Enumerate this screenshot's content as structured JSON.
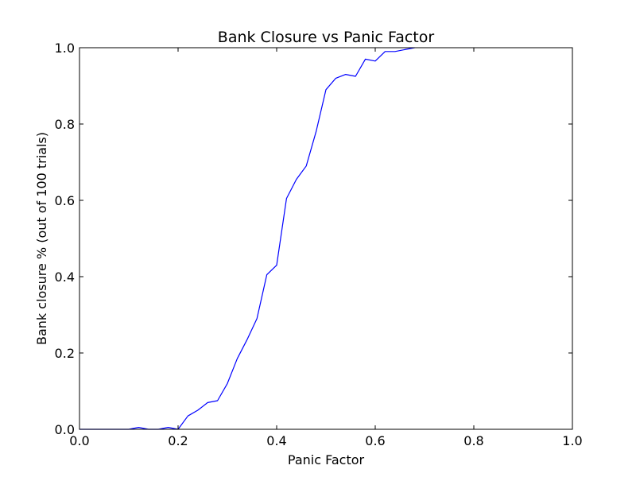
{
  "chart_data": {
    "type": "line",
    "title": "Bank Closure vs Panic Factor",
    "xlabel": "Panic Factor",
    "ylabel": "Bank closure % (out of 100 trials)",
    "xlim": [
      0.0,
      1.0
    ],
    "ylim": [
      0.0,
      1.0
    ],
    "xticks": [
      "0.0",
      "0.2",
      "0.4",
      "0.6",
      "0.8",
      "1.0"
    ],
    "yticks": [
      "0.0",
      "0.2",
      "0.4",
      "0.6",
      "0.8",
      "1.0"
    ],
    "grid": false,
    "legend": "none",
    "series": [
      {
        "color": "#0000ff",
        "x": [
          0.0,
          0.02,
          0.04,
          0.06,
          0.08,
          0.1,
          0.12,
          0.14,
          0.16,
          0.18,
          0.2,
          0.22,
          0.24,
          0.26,
          0.28,
          0.3,
          0.32,
          0.34,
          0.36,
          0.38,
          0.4,
          0.42,
          0.44,
          0.46,
          0.48,
          0.5,
          0.52,
          0.54,
          0.56,
          0.58,
          0.6,
          0.62,
          0.64,
          0.66,
          0.68
        ],
        "y": [
          0.0,
          0.0,
          0.0,
          0.0,
          0.0,
          0.0,
          0.005,
          0.0,
          0.0,
          0.005,
          0.0,
          0.035,
          0.05,
          0.07,
          0.075,
          0.12,
          0.185,
          0.235,
          0.29,
          0.405,
          0.43,
          0.605,
          0.655,
          0.69,
          0.78,
          0.89,
          0.92,
          0.93,
          0.925,
          0.97,
          0.965,
          0.99,
          0.99,
          0.995,
          1.0
        ]
      }
    ]
  }
}
